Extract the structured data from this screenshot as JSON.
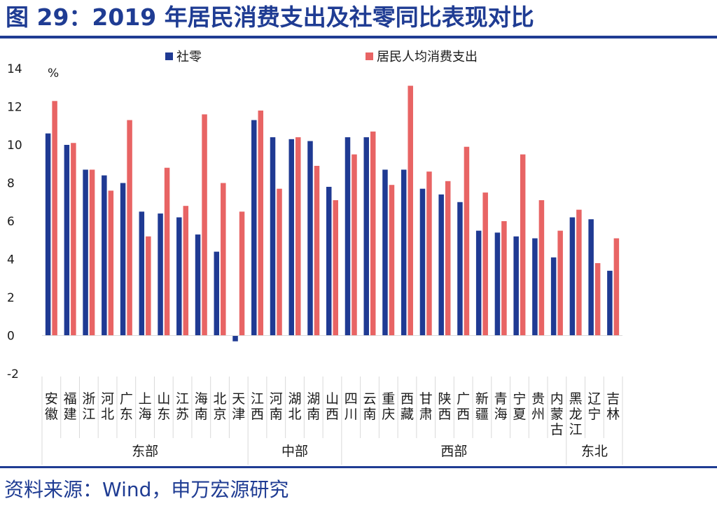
{
  "title": "图 29：2019 年居民消费支出及社零同比表现对比",
  "source": "资料来源：Wind，申万宏源研究",
  "chart_data": {
    "type": "bar",
    "unit": "%",
    "ylim": [
      -2,
      14
    ],
    "yticks": [
      -2,
      0,
      2,
      4,
      6,
      8,
      10,
      12,
      14
    ],
    "legend_position": "top",
    "categories": [
      "安徽",
      "福建",
      "浙江",
      "河北",
      "广东",
      "上海",
      "山东",
      "江苏",
      "海南",
      "北京",
      "天津",
      "江西",
      "河南",
      "湖北",
      "湖南",
      "山西",
      "四川",
      "云南",
      "重庆",
      "西藏",
      "甘肃",
      "陕西",
      "广西",
      "新疆",
      "青海",
      "宁夏",
      "贵州",
      "内蒙古",
      "黑龙江",
      "辽宁",
      "吉林"
    ],
    "groups": [
      {
        "name": "东部",
        "count": 11
      },
      {
        "name": "中部",
        "count": 5
      },
      {
        "name": "西部",
        "count": 12
      },
      {
        "name": "东北",
        "count": 3
      }
    ],
    "series": [
      {
        "name": "社零",
        "color": "#1f3a93",
        "values": [
          10.6,
          10.0,
          8.7,
          8.4,
          8.0,
          6.5,
          6.4,
          6.2,
          5.3,
          4.4,
          -0.3,
          11.3,
          10.4,
          10.3,
          10.2,
          7.8,
          10.4,
          10.4,
          8.7,
          8.7,
          7.7,
          7.4,
          7.0,
          5.5,
          5.4,
          5.2,
          5.1,
          4.1,
          6.2,
          6.1,
          3.4
        ]
      },
      {
        "name": "居民人均消费支出",
        "color": "#e86464",
        "values": [
          12.3,
          10.1,
          8.7,
          7.6,
          11.3,
          5.2,
          8.8,
          6.8,
          11.6,
          8.0,
          6.5,
          11.8,
          7.7,
          10.4,
          8.9,
          7.1,
          9.5,
          10.7,
          7.9,
          13.1,
          8.6,
          8.1,
          9.9,
          7.5,
          6.0,
          9.5,
          7.1,
          5.5,
          6.6,
          3.8,
          5.1
        ]
      }
    ]
  }
}
